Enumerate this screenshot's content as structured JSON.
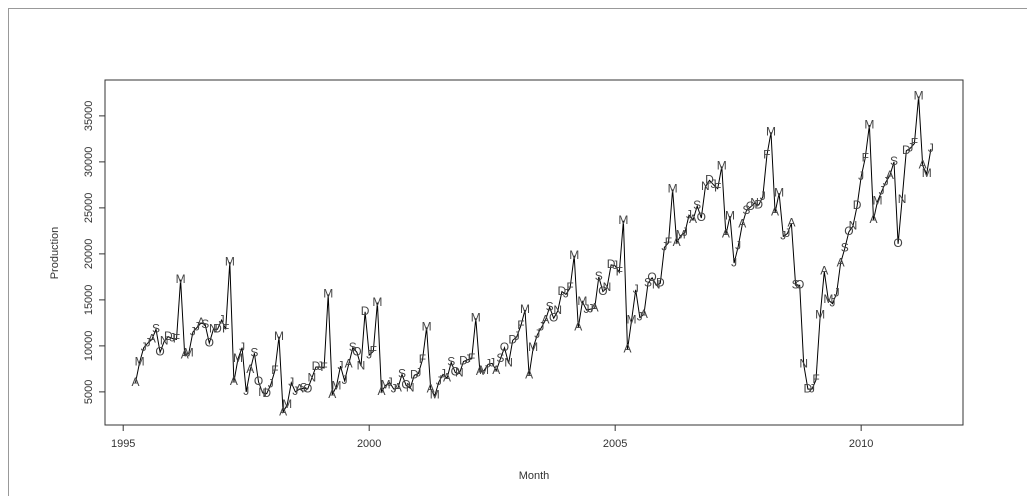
{
  "chart_data": {
    "type": "line",
    "x_label": "Month",
    "y_label": "Production",
    "color": "#000000",
    "xlim": [
      1994.63,
      2012.07
    ],
    "xticks": [
      1995,
      2000,
      2005,
      2010
    ],
    "ylim": [
      1400,
      38900
    ],
    "yticks": [
      5000,
      10000,
      15000,
      20000,
      25000,
      30000,
      35000
    ],
    "x": [
      1995.25,
      1995.333,
      1995.417,
      1995.5,
      1995.583,
      1995.667,
      1995.75,
      1995.833,
      1995.917,
      1996,
      1996.083,
      1996.167,
      1996.25,
      1996.333,
      1996.417,
      1996.5,
      1996.583,
      1996.667,
      1996.75,
      1996.833,
      1996.917,
      1997,
      1997.083,
      1997.167,
      1997.25,
      1997.333,
      1997.417,
      1997.5,
      1997.583,
      1997.667,
      1997.75,
      1997.833,
      1997.917,
      1998,
      1998.083,
      1998.167,
      1998.25,
      1998.333,
      1998.417,
      1998.5,
      1998.583,
      1998.667,
      1998.75,
      1998.833,
      1998.917,
      1999,
      1999.083,
      1999.167,
      1999.25,
      1999.333,
      1999.417,
      1999.5,
      1999.583,
      1999.667,
      1999.75,
      1999.833,
      1999.917,
      2000,
      2000.083,
      2000.167,
      2000.25,
      2000.333,
      2000.417,
      2000.5,
      2000.583,
      2000.667,
      2000.75,
      2000.833,
      2000.917,
      2001,
      2001.083,
      2001.167,
      2001.25,
      2001.333,
      2001.417,
      2001.5,
      2001.583,
      2001.667,
      2001.75,
      2001.833,
      2001.917,
      2002,
      2002.083,
      2002.167,
      2002.25,
      2002.333,
      2002.417,
      2002.5,
      2002.583,
      2002.667,
      2002.75,
      2002.833,
      2002.917,
      2003,
      2003.083,
      2003.167,
      2003.25,
      2003.333,
      2003.417,
      2003.5,
      2003.583,
      2003.667,
      2003.75,
      2003.833,
      2003.917,
      2004,
      2004.083,
      2004.167,
      2004.25,
      2004.333,
      2004.417,
      2004.5,
      2004.583,
      2004.667,
      2004.75,
      2004.833,
      2004.917,
      2005,
      2005.083,
      2005.167,
      2005.25,
      2005.333,
      2005.417,
      2005.5,
      2005.583,
      2005.667,
      2005.75,
      2005.833,
      2005.917,
      2006,
      2006.083,
      2006.167,
      2006.25,
      2006.333,
      2006.417,
      2006.5,
      2006.583,
      2006.667,
      2006.75,
      2006.833,
      2006.917,
      2007,
      2007.083,
      2007.167,
      2007.25,
      2007.333,
      2007.417,
      2007.5,
      2007.583,
      2007.667,
      2007.75,
      2007.833,
      2007.917,
      2008,
      2008.083,
      2008.167,
      2008.25,
      2008.333,
      2008.417,
      2008.5,
      2008.583,
      2008.667,
      2008.75,
      2008.833,
      2008.917,
      2009,
      2009.083,
      2009.167,
      2009.25,
      2009.333,
      2009.417,
      2009.5,
      2009.583,
      2009.667,
      2009.75,
      2009.833,
      2009.917,
      2010,
      2010.083,
      2010.167,
      2010.25,
      2010.333,
      2010.417,
      2010.5,
      2010.583,
      2010.667,
      2010.75,
      2010.833,
      2010.917,
      2011,
      2011.083,
      2011.167,
      2011.25,
      2011.333,
      2011.417
    ],
    "values": [
      6000,
      8200,
      9800,
      10300,
      10700,
      11800,
      9300,
      10500,
      11000,
      10800,
      10700,
      17200,
      9000,
      9200,
      11500,
      12000,
      12500,
      12300,
      10300,
      11800,
      11800,
      12800,
      11800,
      19100,
      6100,
      8600,
      9800,
      5000,
      7400,
      9200,
      6100,
      4900,
      4800,
      5800,
      7300,
      11000,
      2800,
      3600,
      6000,
      5000,
      5300,
      5400,
      5300,
      6500,
      7700,
      7700,
      7600,
      15600,
      4700,
      5600,
      7800,
      6200,
      8000,
      9800,
      9300,
      7800,
      13700,
      9000,
      9400,
      14700,
      5000,
      5700,
      6000,
      5300,
      5400,
      6900,
      5700,
      5400,
      6800,
      7000,
      8500,
      12000,
      5300,
      4600,
      6100,
      6900,
      6500,
      8200,
      7100,
      7000,
      8300,
      8500,
      8600,
      13000,
      7200,
      7300,
      8000,
      8100,
      7300,
      8600,
      9800,
      8100,
      10600,
      11000,
      12200,
      13900,
      6800,
      9800,
      11200,
      12000,
      12800,
      14200,
      13000,
      13800,
      15900,
      15600,
      16300,
      19800,
      12000,
      14800,
      13900,
      14000,
      14100,
      17500,
      15900,
      16300,
      18800,
      18700,
      18000,
      23600,
      9600,
      12800,
      16100,
      13100,
      13400,
      16800,
      17400,
      16600,
      16800,
      20700,
      21200,
      27000,
      21200,
      22000,
      22300,
      24200,
      23700,
      25200,
      23900,
      27300,
      28000,
      27500,
      27100,
      29500,
      22100,
      24100,
      19000,
      20800,
      23200,
      24700,
      25100,
      25500,
      25300,
      26200,
      30700,
      33200,
      24500,
      26600,
      21900,
      22200,
      23300,
      16600,
      16600,
      8000,
      5300,
      5300,
      6300,
      13300,
      18100,
      15000,
      14600,
      15700,
      19000,
      20600,
      22400,
      23000,
      25200,
      28400,
      30400,
      34000,
      23700,
      25700,
      26800,
      27800,
      28500,
      30000,
      21100,
      25900,
      31200,
      31500,
      32000,
      37100,
      29600,
      28700,
      31400
    ],
    "labels": [
      "A",
      "M",
      "J",
      "J",
      "A",
      "S",
      "O",
      "N",
      "D",
      "J",
      "F",
      "M",
      "A",
      "M",
      "J",
      "J",
      "A",
      "S",
      "O",
      "N",
      "D",
      "J",
      "F",
      "M",
      "A",
      "M",
      "J",
      "J",
      "A",
      "S",
      "O",
      "N",
      "D",
      "J",
      "F",
      "M",
      "A",
      "M",
      "J",
      "J",
      "A",
      "S",
      "O",
      "N",
      "D",
      "J",
      "F",
      "M",
      "A",
      "M",
      "J",
      "J",
      "A",
      "S",
      "O",
      "N",
      "D",
      "J",
      "F",
      "M",
      "A",
      "M",
      "J",
      "J",
      "A",
      "S",
      "O",
      "N",
      "D",
      "J",
      "F",
      "M",
      "A",
      "M",
      "J",
      "J",
      "A",
      "S",
      "O",
      "N",
      "D",
      "J",
      "F",
      "M",
      "A",
      "M",
      "J",
      "J",
      "A",
      "S",
      "O",
      "N",
      "D",
      "J",
      "F",
      "M",
      "A",
      "M",
      "J",
      "J",
      "A",
      "S",
      "O",
      "N",
      "D",
      "J",
      "F",
      "M",
      "A",
      "M",
      "J",
      "J",
      "A",
      "S",
      "O",
      "N",
      "D",
      "J",
      "F",
      "M",
      "A",
      "M",
      "J",
      "J",
      "A",
      "S",
      "O",
      "N",
      "D",
      "J",
      "F",
      "M",
      "A",
      "M",
      "J",
      "J",
      "A",
      "S",
      "O",
      "N",
      "D",
      "J",
      "F",
      "M",
      "A",
      "M",
      "J",
      "J",
      "A",
      "S",
      "O",
      "N",
      "D",
      "J",
      "F",
      "M",
      "A",
      "M",
      "J",
      "J",
      "A",
      "S",
      "O",
      "N",
      "D",
      "J",
      "F",
      "M",
      "A",
      "M",
      "J",
      "J",
      "A",
      "S",
      "O",
      "N",
      "D",
      "J",
      "F",
      "M",
      "A",
      "M",
      "J",
      "J",
      "A",
      "S",
      "O",
      "N",
      "D",
      "J",
      "F",
      "M",
      "A",
      "M",
      "J"
    ]
  }
}
